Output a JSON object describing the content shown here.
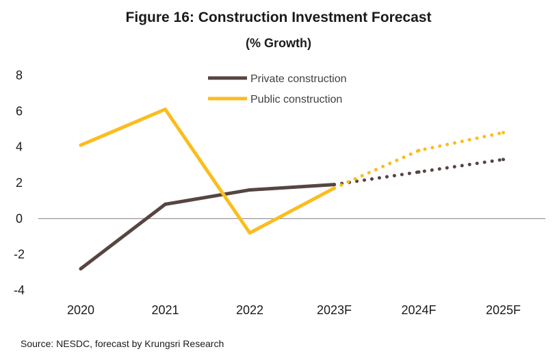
{
  "chart_data": {
    "type": "line",
    "title": "Figure 16: Construction  Investment Forecast",
    "subtitle": "(% Growth)",
    "categories": [
      "2020",
      "2021",
      "2022",
      "2023F",
      "2024F",
      "2025F"
    ],
    "forecast_from_index": 3,
    "series": [
      {
        "name": "Private construction",
        "color": "#574541",
        "values": [
          -2.8,
          0.8,
          1.6,
          1.9,
          2.6,
          3.3
        ]
      },
      {
        "name": "Public construction",
        "color": "#FBBD1E",
        "values": [
          4.1,
          6.1,
          -0.8,
          1.7,
          3.8,
          4.8
        ]
      }
    ],
    "ylim": [
      -4,
      8
    ],
    "yticks": [
      8,
      6,
      4,
      2,
      0,
      -2,
      -4
    ],
    "grid": false,
    "legend_position": "top-center",
    "source": "Source: NESDC,  forecast by Krungsri Research"
  }
}
